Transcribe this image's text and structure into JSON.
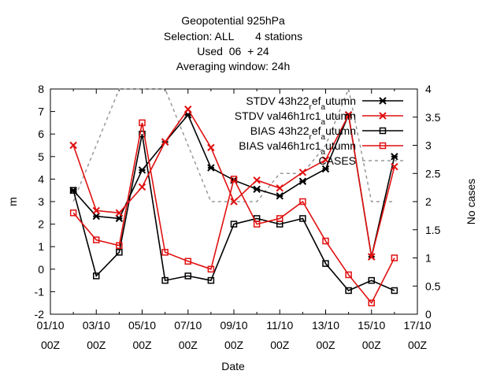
{
  "chart_data": {
    "type": "line",
    "title_lines": [
      "Geopotential 925hPa",
      "Selection: ALL       4 stations",
      "Used  06  + 24",
      "Averaging window: 24h"
    ],
    "xlabel": "Date",
    "ylabel": "m",
    "y2label": "No cases",
    "xlim": [
      1,
      17
    ],
    "ylim": [
      -2,
      8
    ],
    "y2lim": [
      0,
      4
    ],
    "x_ticks": [
      {
        "x": 1,
        "line1": "01/10",
        "line2": "00Z"
      },
      {
        "x": 3,
        "line1": "03/10",
        "line2": "00Z"
      },
      {
        "x": 5,
        "line1": "05/10",
        "line2": "00Z"
      },
      {
        "x": 7,
        "line1": "07/10",
        "line2": "00Z"
      },
      {
        "x": 9,
        "line1": "09/10",
        "line2": "00Z"
      },
      {
        "x": 11,
        "line1": "11/10",
        "line2": "00Z"
      },
      {
        "x": 13,
        "line1": "13/10",
        "line2": "00Z"
      },
      {
        "x": 15,
        "line1": "15/10",
        "line2": "00Z"
      },
      {
        "x": 17,
        "line1": "17/10",
        "line2": "00Z"
      }
    ],
    "y_ticks": [
      "-2",
      "-1",
      "0",
      "1",
      "2",
      "3",
      "4",
      "5",
      "6",
      "7",
      "8"
    ],
    "y2_ticks": [
      "0",
      "0.5",
      "1",
      "1.5",
      "2",
      "2.5",
      "3",
      "3.5",
      "4"
    ],
    "grid": false,
    "legend_position": "top-right",
    "x": [
      2,
      3,
      4,
      5,
      6,
      7,
      8,
      9,
      10,
      11,
      12,
      13,
      14,
      15,
      16
    ],
    "series": [
      {
        "name": "STDV 43h22_ref_autumn",
        "legend_main": "STDV 43h22",
        "legend_sub": "r",
        "legend_tail": "ef",
        "legend_sub2": "a",
        "legend_end": "utumn",
        "color": "#000000",
        "marker": "star",
        "axis": "y",
        "values": [
          3.5,
          2.35,
          2.25,
          4.4,
          5.65,
          6.85,
          4.5,
          3.95,
          3.55,
          3.25,
          3.9,
          4.45,
          6.85,
          0.55,
          5.0
        ]
      },
      {
        "name": "STDV val46h1rc1_autumn",
        "legend_main": "STDV val46h1rc1",
        "legend_sub": "a",
        "legend_tail": "",
        "legend_sub2": "",
        "legend_end": "utumn",
        "color": "#e01010",
        "marker": "x",
        "axis": "y",
        "values": [
          5.5,
          2.6,
          2.5,
          3.65,
          5.65,
          7.1,
          5.4,
          3.0,
          3.95,
          3.6,
          4.3,
          4.85,
          6.85,
          0.55,
          4.55
        ]
      },
      {
        "name": "BIAS 43h22_ref_autumn",
        "legend_main": "BIAS 43h22",
        "legend_sub": "r",
        "legend_tail": "ef",
        "legend_sub2": "a",
        "legend_end": "utumn",
        "color": "#000000",
        "marker": "square",
        "axis": "y",
        "values": [
          3.5,
          -0.3,
          0.75,
          6.0,
          -0.5,
          -0.3,
          -0.5,
          2.0,
          2.25,
          2.0,
          2.25,
          0.25,
          -0.95,
          -0.5,
          -0.95
        ]
      },
      {
        "name": "BIAS val46h1rc1_autumn",
        "legend_main": "BIAS val46h1rc1",
        "legend_sub": "a",
        "legend_tail": "",
        "legend_sub2": "",
        "legend_end": "utumn",
        "color": "#e01010",
        "marker": "square",
        "axis": "y",
        "values": [
          2.5,
          1.3,
          1.05,
          6.5,
          0.75,
          0.35,
          0.0,
          4.0,
          2.0,
          2.25,
          3.0,
          1.25,
          -0.25,
          -1.5,
          0.5
        ]
      },
      {
        "name": "CASES",
        "legend_main": "CASES",
        "legend_sub": "",
        "legend_tail": "",
        "legend_sub2": "",
        "legend_end": "",
        "color": "#999999",
        "marker": "none",
        "dashed": true,
        "axis": "y2",
        "x": [
          2,
          4,
          5,
          6,
          8,
          9,
          10,
          11,
          12,
          13,
          14,
          15,
          16
        ],
        "values": [
          2.0,
          4.0,
          4.0,
          4.0,
          2.0,
          2.0,
          2.0,
          2.5,
          2.5,
          3.0,
          4.0,
          2.0,
          2.0
        ]
      }
    ]
  }
}
